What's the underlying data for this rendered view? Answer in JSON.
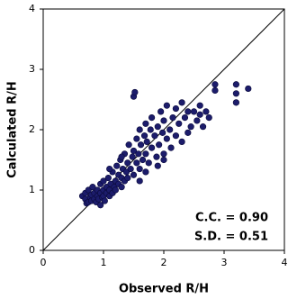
{
  "chart_data": {
    "type": "scatter",
    "xlabel": "Observed R/H",
    "ylabel": "Calculated R/H",
    "annotations": [
      "C.C. = 0.90",
      "S.D. = 0.51"
    ],
    "color": "#1c1c6b",
    "xlim": [
      0,
      4
    ],
    "ylim": [
      0,
      4
    ],
    "xticks": [
      0,
      1,
      2,
      3,
      4
    ],
    "yticks": [
      0,
      1,
      2,
      3,
      4
    ],
    "x": [
      0.65,
      0.7,
      0.7,
      0.72,
      0.75,
      0.75,
      0.78,
      0.8,
      0.8,
      0.82,
      0.85,
      0.85,
      0.88,
      0.9,
      0.9,
      0.92,
      0.95,
      0.95,
      0.98,
      1.0,
      1.0,
      1.0,
      1.02,
      1.05,
      1.05,
      1.08,
      1.1,
      1.1,
      1.12,
      1.15,
      1.15,
      1.18,
      1.2,
      1.2,
      1.22,
      1.25,
      1.25,
      1.28,
      1.3,
      1.3,
      1.32,
      1.35,
      1.35,
      1.38,
      1.4,
      1.4,
      1.42,
      1.45,
      1.48,
      1.5,
      1.5,
      1.5,
      1.52,
      1.55,
      1.55,
      1.58,
      1.6,
      1.6,
      1.62,
      1.65,
      1.68,
      1.7,
      1.7,
      1.72,
      1.75,
      1.78,
      1.8,
      1.8,
      1.85,
      1.88,
      1.9,
      1.92,
      1.95,
      1.98,
      2.0,
      2.0,
      2.05,
      2.05,
      2.1,
      2.12,
      2.15,
      2.2,
      2.2,
      2.25,
      2.3,
      2.3,
      2.35,
      2.4,
      2.4,
      2.45,
      2.5,
      2.55,
      2.6,
      2.6,
      2.65,
      2.7,
      2.75,
      2.85,
      2.85,
      3.2,
      3.2,
      3.2,
      3.4,
      1.1,
      0.95,
      1.3,
      1.6,
      1.7,
      1.9,
      2.0
    ],
    "y": [
      0.9,
      0.85,
      0.95,
      0.78,
      0.8,
      1.0,
      0.88,
      0.82,
      0.92,
      1.05,
      0.85,
      0.95,
      0.8,
      0.9,
      1.0,
      0.85,
      0.95,
      1.1,
      0.88,
      0.9,
      1.0,
      1.15,
      0.82,
      0.95,
      1.05,
      1.2,
      0.9,
      1.0,
      1.1,
      0.95,
      1.3,
      1.05,
      1.0,
      1.15,
      1.4,
      1.1,
      1.25,
      1.5,
      1.05,
      1.2,
      1.35,
      1.6,
      1.15,
      1.3,
      1.2,
      1.45,
      1.75,
      1.35,
      1.55,
      1.25,
      1.65,
      2.55,
      2.62,
      1.45,
      1.85,
      1.6,
      1.35,
      2.0,
      1.75,
      1.5,
      1.9,
      1.6,
      2.1,
      1.8,
      1.45,
      2.0,
      1.7,
      2.2,
      1.9,
      1.55,
      2.05,
      1.75,
      2.3,
      1.95,
      1.6,
      2.15,
      1.85,
      2.4,
      2.0,
      1.7,
      2.2,
      1.9,
      2.35,
      2.1,
      1.8,
      2.45,
      2.2,
      1.95,
      2.3,
      2.05,
      2.3,
      2.15,
      2.25,
      2.4,
      2.05,
      2.3,
      2.2,
      2.75,
      2.65,
      2.75,
      2.6,
      2.45,
      2.68,
      1.35,
      0.75,
      1.55,
      1.15,
      1.3,
      1.4,
      1.5
    ]
  }
}
